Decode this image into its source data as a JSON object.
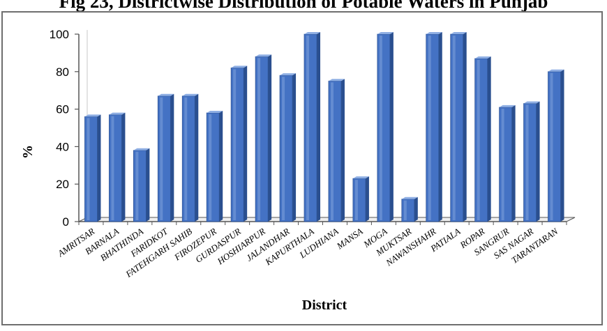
{
  "chart_data": {
    "type": "bar",
    "title": "Fig 23, Districtwise Distribution of Potable Waters in Punjab",
    "xlabel": "District",
    "ylabel": "%",
    "ylim": [
      0,
      100
    ],
    "yticks": [
      0,
      20,
      40,
      60,
      80,
      100
    ],
    "grid": false,
    "legend": "none",
    "bar_color": "#4472c4",
    "categories": [
      "AMRITSAR",
      "BARNALA",
      "BHATHINDA",
      "FARIDKOT",
      "FATEHGARH SAHIB",
      "FIROZEPUR",
      "GURDASPUR",
      "HOSHIARPUR",
      "JALANDHAR",
      "KAPURTHALA",
      "LUDHIANA",
      "MANSA",
      "MOGA",
      "MUKTSAR",
      "NAWANSHAHR",
      "PATIALA",
      "ROPAR",
      "SANGRUR",
      "SAS NAGAR",
      "TARANTARAN"
    ],
    "values": [
      56,
      57,
      38,
      67,
      67,
      58,
      82,
      88,
      78,
      100,
      75,
      23,
      100,
      12,
      100,
      100,
      87,
      61,
      63,
      80
    ]
  }
}
